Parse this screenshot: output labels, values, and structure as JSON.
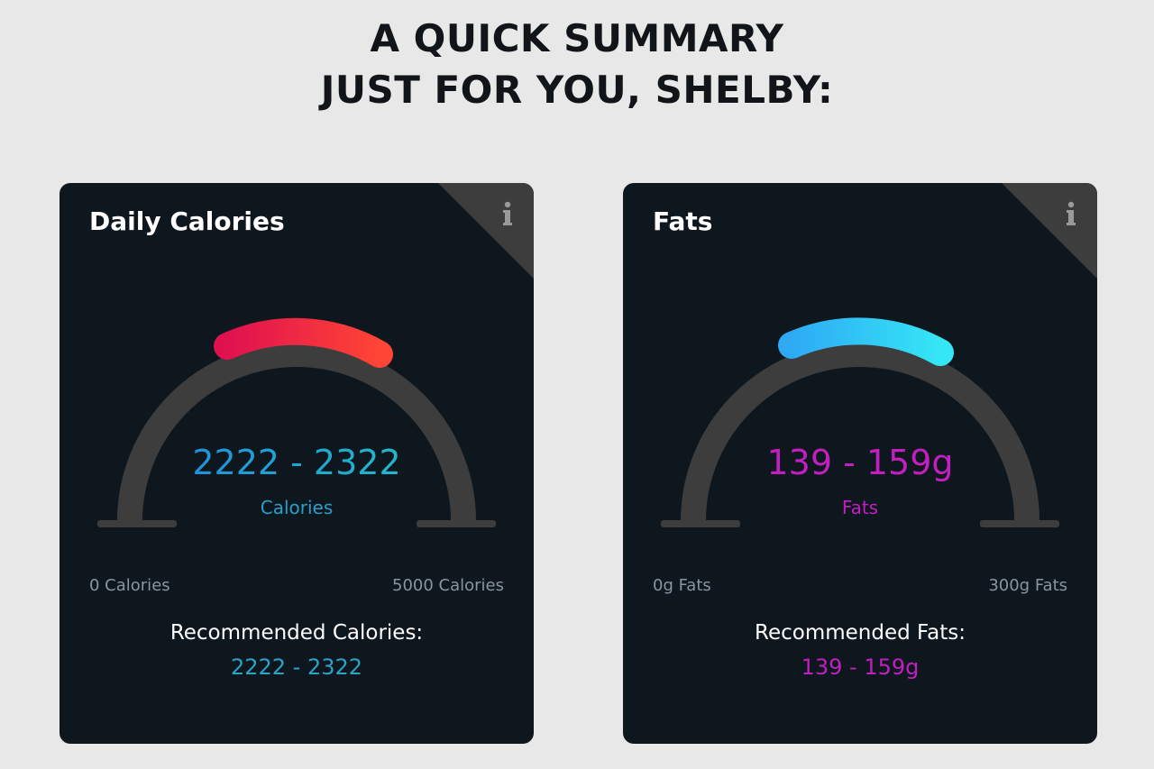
{
  "heading": {
    "line1": "A QUICK SUMMARY",
    "line2": "JUST FOR YOU, SHELBY:"
  },
  "cards": [
    {
      "title": "Daily Calories",
      "info_icon": "info-icon",
      "gauge_value": "2222 - 2322",
      "gauge_unit": "Calories",
      "min_label": "0 Calories",
      "max_label": "5000 Calories",
      "recommended_label": "Recommended Calories:",
      "recommended_value": "2222 - 2322",
      "range": {
        "min": 0,
        "max": 5000,
        "low": 2222,
        "high": 2322
      },
      "arc_colors": [
        "#e0114f",
        "#ff4535"
      ]
    },
    {
      "title": "Fats",
      "info_icon": "info-icon",
      "gauge_value": "139 - 159g",
      "gauge_unit": "Fats",
      "min_label": "0g Fats",
      "max_label": "300g Fats",
      "recommended_label": "Recommended Fats:",
      "recommended_value": "139 - 159g",
      "range": {
        "min": 0,
        "max": 300,
        "low": 139,
        "high": 159
      },
      "arc_colors": [
        "#2eaaf5",
        "#35e6f5"
      ]
    }
  ],
  "colors": {
    "page_background": "#e8e8e8",
    "card_background": "#0e161e",
    "track": "#3d3d3d"
  }
}
